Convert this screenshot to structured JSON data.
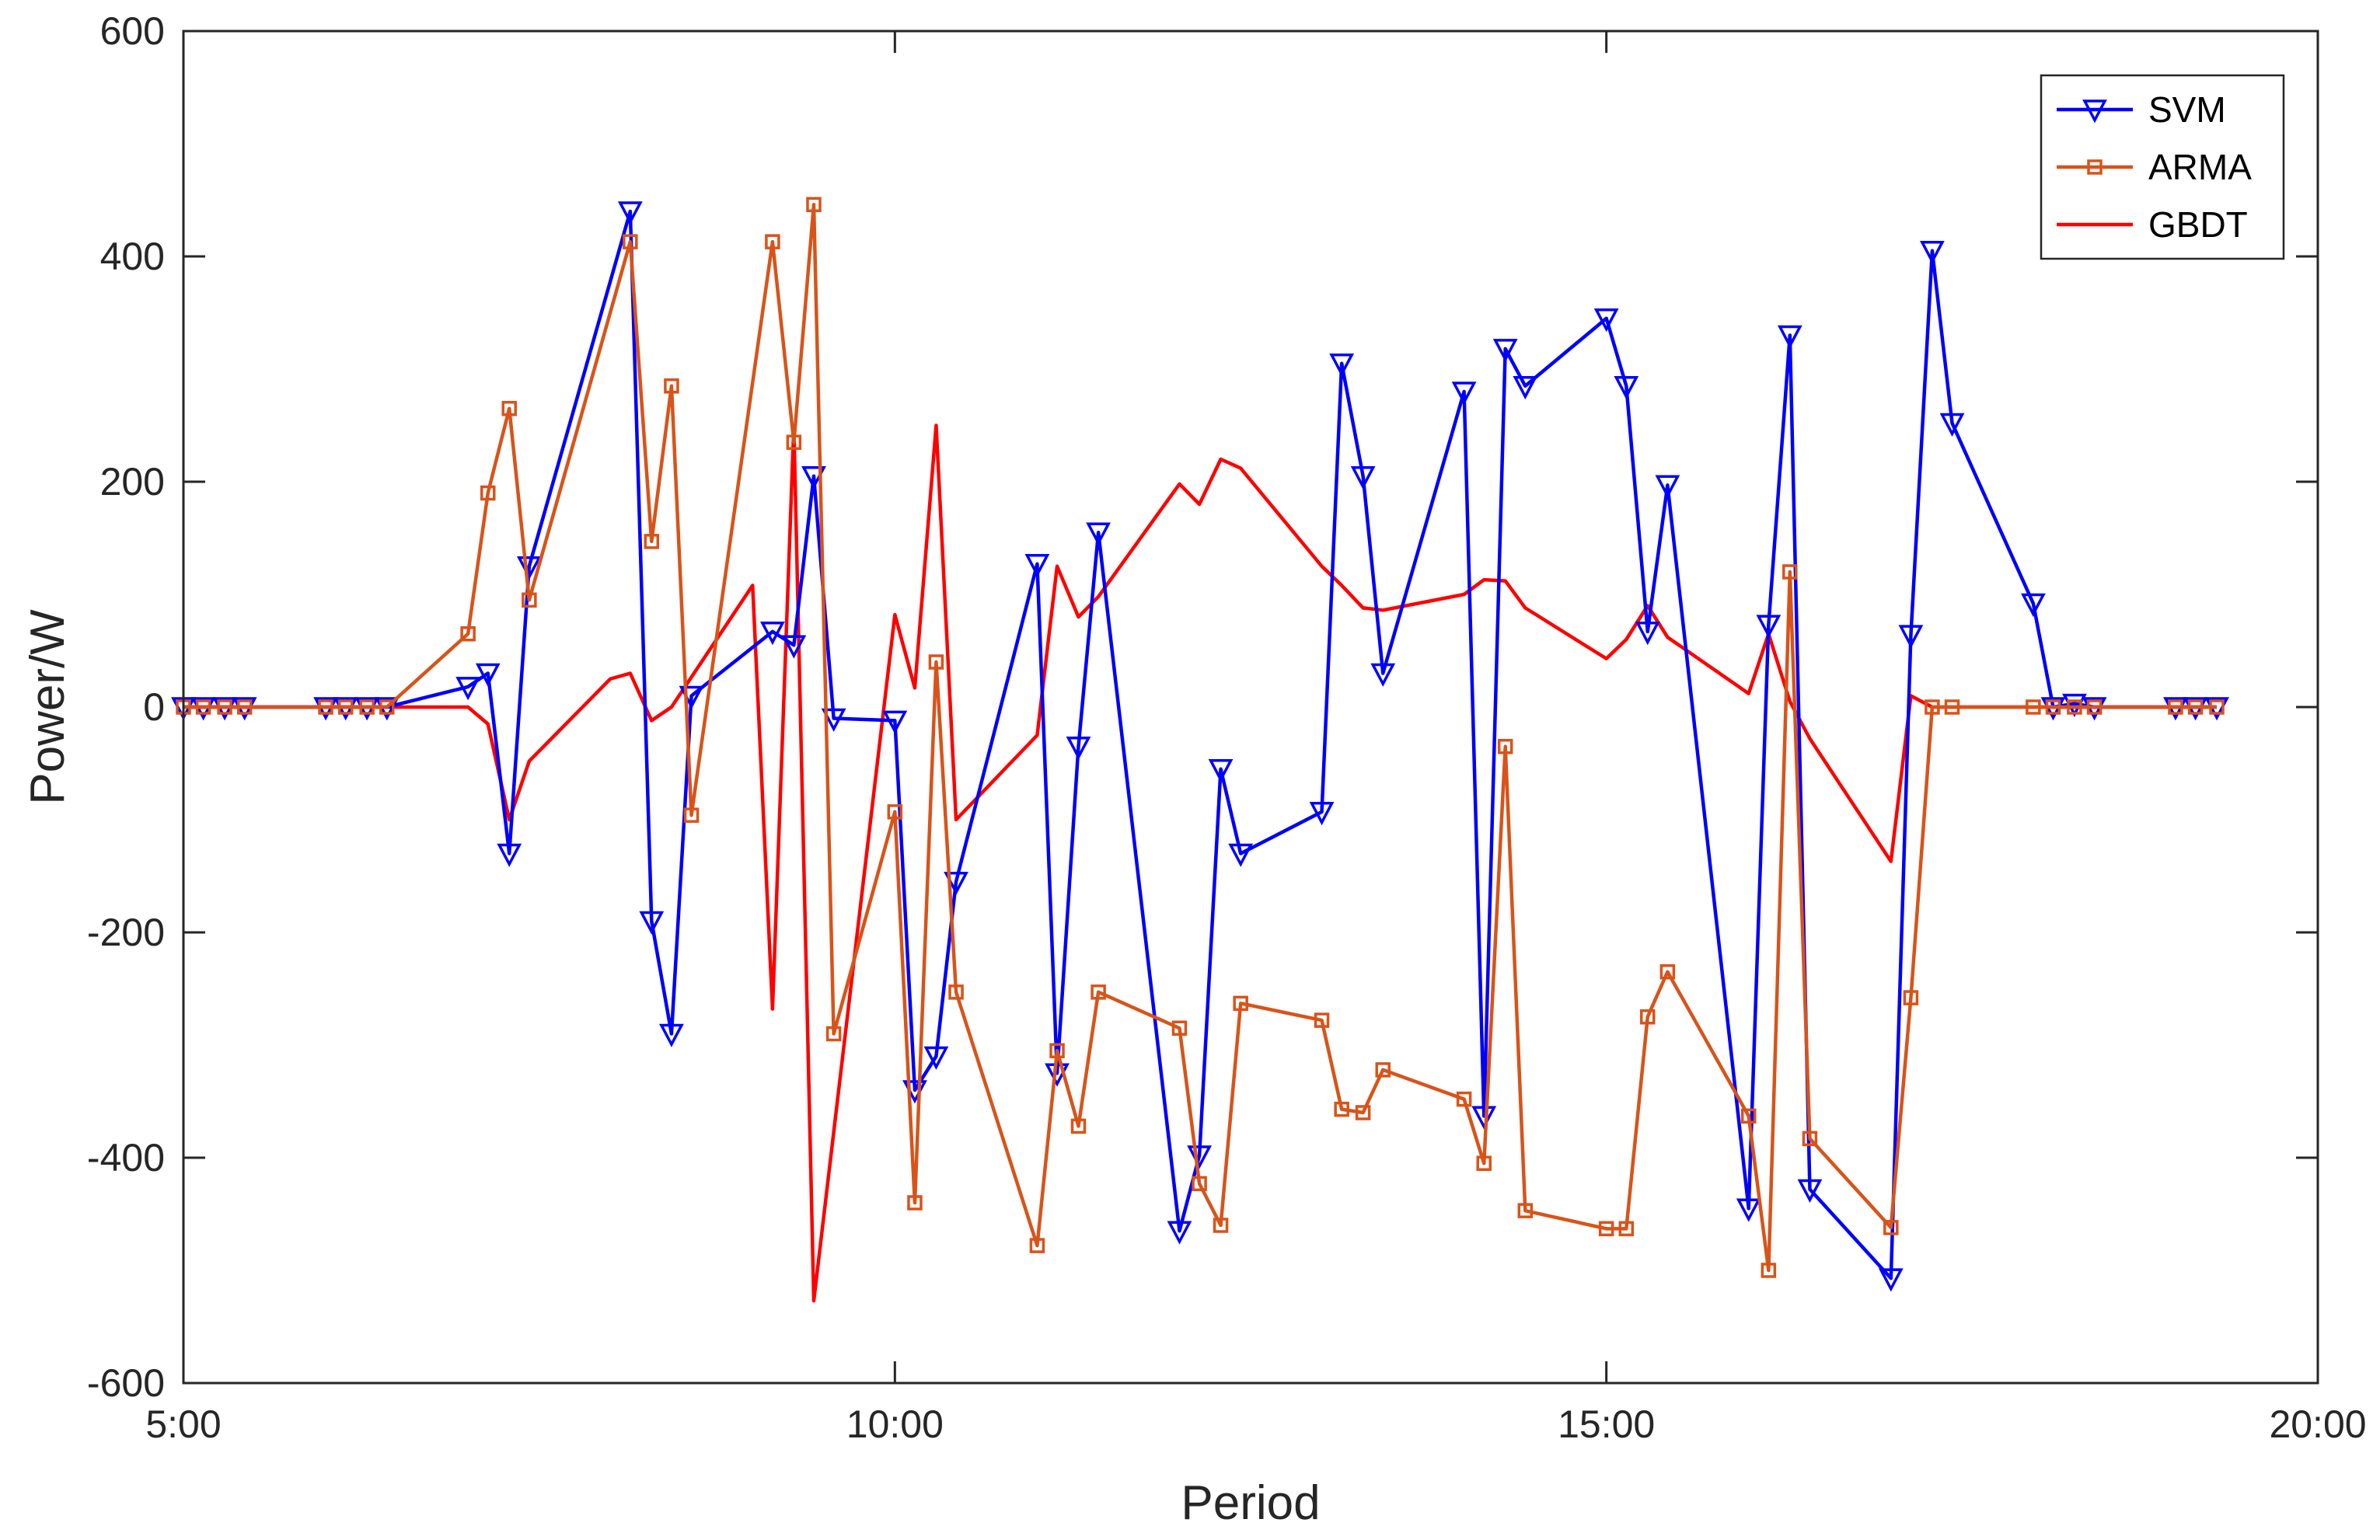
{
  "chart_data": {
    "type": "line",
    "title": "",
    "xlabel": "Period",
    "ylabel": "Power/W",
    "xlim": [
      5,
      20
    ],
    "ylim": [
      -600,
      600
    ],
    "xticks": [
      5,
      10,
      15,
      20
    ],
    "xtick_labels": [
      "5:00",
      "10:00",
      "15:00",
      "20:00"
    ],
    "yticks": [
      -600,
      -400,
      -200,
      0,
      200,
      400,
      600
    ],
    "ytick_labels": [
      "-600",
      "-400",
      "-200",
      "0",
      "200",
      "400",
      "600"
    ],
    "grid": false,
    "legend_position": "top-right",
    "series": [
      {
        "name": "SVM",
        "color": "#0000ff",
        "marker": "triangle-down",
        "x": [
          5.0,
          5.14,
          5.29,
          5.43,
          6.0,
          6.14,
          6.29,
          6.43,
          7.0,
          7.14,
          7.29,
          7.43,
          8.14,
          8.29,
          8.43,
          8.57,
          9.14,
          9.29,
          9.43,
          9.57,
          10.0,
          10.14,
          10.29,
          10.43,
          11.0,
          11.14,
          11.29,
          11.43,
          12.0,
          12.14,
          12.29,
          12.43,
          13.0,
          13.14,
          13.29,
          13.43,
          14.0,
          14.14,
          14.29,
          14.43,
          15.0,
          15.14,
          15.29,
          15.43,
          16.0,
          16.14,
          16.29,
          16.43,
          17.0,
          17.14,
          17.29,
          17.43,
          18.0,
          18.14,
          18.29,
          18.43,
          19.0,
          19.14,
          19.29
        ],
        "y": [
          0,
          0,
          0,
          0,
          0,
          0,
          0,
          0,
          18,
          30,
          -130,
          125,
          440,
          -190,
          -290,
          10,
          67,
          55,
          205,
          -10,
          -12,
          -340,
          -310,
          -155,
          127,
          -325,
          -35,
          155,
          -465,
          -398,
          -55,
          -130,
          -93,
          305,
          205,
          30,
          280,
          -363,
          318,
          285,
          345,
          285,
          67,
          197,
          -445,
          73,
          330,
          -428,
          -507,
          64,
          405,
          252,
          92,
          0,
          3,
          0,
          0,
          0,
          0
        ]
      },
      {
        "name": "ARMA",
        "color": "#d95319",
        "marker": "square",
        "x": [
          5.0,
          5.14,
          5.29,
          5.43,
          6.0,
          6.14,
          6.29,
          6.43,
          7.0,
          7.14,
          7.29,
          7.43,
          8.14,
          8.29,
          8.43,
          8.57,
          9.14,
          9.29,
          9.43,
          9.57,
          10.0,
          10.14,
          10.29,
          10.43,
          11.0,
          11.14,
          11.29,
          11.43,
          12.0,
          12.14,
          12.29,
          12.43,
          13.0,
          13.14,
          13.29,
          13.43,
          14.0,
          14.14,
          14.29,
          14.43,
          15.0,
          15.14,
          15.29,
          15.43,
          16.0,
          16.14,
          16.29,
          16.43,
          17.0,
          17.14,
          17.29,
          17.43,
          18.0,
          18.14,
          18.29,
          18.43,
          19.0,
          19.14,
          19.29
        ],
        "y": [
          0,
          0,
          0,
          0,
          0,
          0,
          0,
          0,
          65,
          190,
          265,
          95,
          413,
          147,
          285,
          -96,
          413,
          235,
          446,
          -290,
          -93,
          -440,
          40,
          -253,
          -478,
          -305,
          -372,
          -253,
          -285,
          -423,
          -460,
          -263,
          -278,
          -357,
          -360,
          -322,
          -348,
          -405,
          -35,
          -447,
          -463,
          -463,
          -275,
          -235,
          -363,
          -500,
          120,
          -383,
          -462,
          -258,
          0,
          0,
          0,
          0,
          0,
          0,
          0,
          0,
          0
        ]
      },
      {
        "name": "GBDT",
        "color": "#ff0000",
        "marker": "none",
        "x": [
          5.0,
          7.0,
          7.14,
          7.29,
          7.43,
          8.0,
          8.14,
          8.29,
          8.43,
          9.0,
          9.14,
          9.29,
          9.43,
          10.0,
          10.14,
          10.29,
          10.43,
          11.0,
          11.14,
          11.29,
          11.43,
          12.0,
          12.14,
          12.29,
          12.43,
          13.0,
          13.14,
          13.29,
          13.43,
          14.0,
          14.14,
          14.29,
          14.43,
          15.0,
          15.14,
          15.29,
          15.43,
          16.0,
          16.14,
          16.29,
          16.43,
          17.0,
          17.14,
          17.29,
          17.43,
          18.0,
          18.14,
          18.29,
          18.43,
          19.0,
          19.14,
          19.29
        ],
        "y": [
          0,
          0,
          -15,
          -100,
          -48,
          25,
          30,
          -12,
          0,
          108,
          -268,
          250,
          -527,
          82,
          17,
          250,
          -100,
          -25,
          125,
          80,
          98,
          198,
          180,
          220,
          212,
          125,
          108,
          88,
          86,
          100,
          113,
          112,
          88,
          43,
          60,
          90,
          62,
          12,
          65,
          5,
          -28,
          -137,
          10,
          0,
          0,
          0,
          0,
          0,
          0,
          0,
          0,
          0
        ]
      }
    ]
  }
}
